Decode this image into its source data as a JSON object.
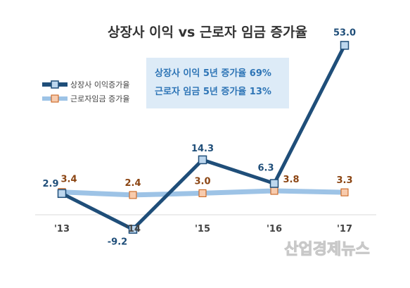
{
  "chart_data": {
    "type": "line",
    "title": "상장사 이익 vs 근로자 임금 증가율",
    "categories": [
      "'13",
      "'14",
      "'15",
      "'16",
      "'17"
    ],
    "series": [
      {
        "name": "상장사 이익증가율",
        "values": [
          2.9,
          -9.2,
          14.3,
          6.3,
          53.0
        ],
        "labels": [
          "2.9",
          "-9.2",
          "14.3",
          "6.3",
          "53.0"
        ],
        "color": "#1f4e79"
      },
      {
        "name": "근로자임금 증가율",
        "values": [
          3.4,
          2.4,
          3.0,
          3.8,
          3.3
        ],
        "labels": [
          "3.4",
          "2.4",
          "3.0",
          "3.8",
          "3.3"
        ],
        "color": "#9dc3e6"
      }
    ],
    "ylim": [
      -10,
      55
    ],
    "grid": false,
    "legend": "left"
  },
  "note": {
    "line1": "상장사 이익 5년  증가율 69%",
    "line2": "근로자 임금 5년 증가율 13%"
  },
  "watermark": "산업경제뉴스"
}
